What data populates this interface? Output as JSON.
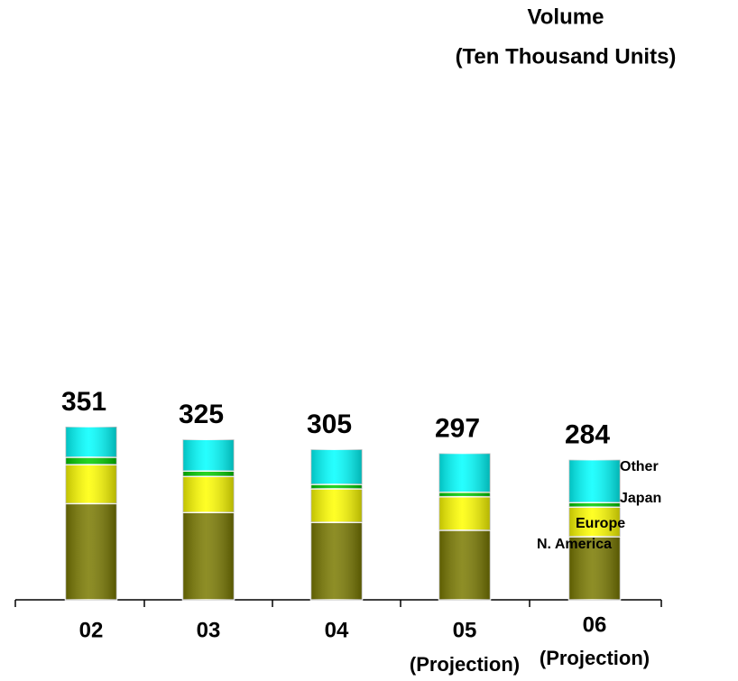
{
  "chart_data": {
    "type": "stacked-bar",
    "title": "Volume",
    "subtitle": "(Ten Thousand Units)",
    "categories": [
      "02",
      "03",
      "04",
      "05",
      "06"
    ],
    "category_notes": [
      null,
      null,
      null,
      "(Projection)",
      "(Projection)"
    ],
    "series": [
      {
        "name": "N. America",
        "color": "#7a7a00",
        "values": [
          195,
          177,
          157,
          141,
          128
        ]
      },
      {
        "name": "Europe",
        "color": "#ffff00",
        "values": [
          79,
          73,
          68,
          68,
          60
        ]
      },
      {
        "name": "Japan",
        "color": "#00cc00",
        "values": [
          15,
          11,
          9,
          9,
          9
        ]
      },
      {
        "name": "Other",
        "color": "#00ffff",
        "values": [
          62,
          64,
          71,
          79,
          87
        ]
      }
    ],
    "totals": [
      351,
      325,
      305,
      297,
      284
    ]
  }
}
